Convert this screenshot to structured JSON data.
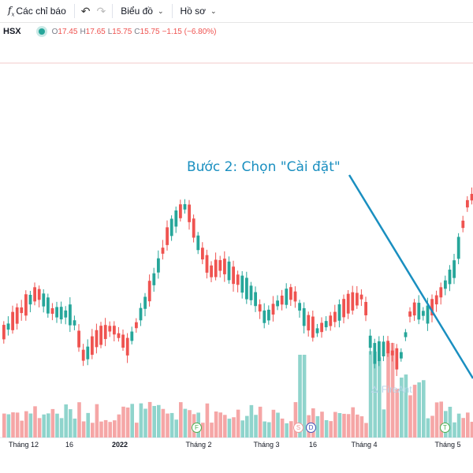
{
  "toolbar": {
    "indicators_label": "Các chỉ báo",
    "chart_label": "Biểu đồ",
    "profile_label": "Hồ sơ"
  },
  "legend": {
    "symbol": "HSX",
    "open_key": "O",
    "open": "17.45",
    "high_key": "H",
    "high": "17.65",
    "low_key": "L",
    "low": "15.75",
    "close_key": "C",
    "close": "15.75",
    "change": "−1.15 (−6.80%)"
  },
  "annotation": {
    "text": "Bước 2: Chọn \"Cài đặt\"",
    "color": "#1a8fc0"
  },
  "watermark": "FireAnt",
  "colors": {
    "up": "#26a69a",
    "down": "#ef5350",
    "up_vol": "#8fd4cc",
    "down_vol": "#f5a6a6"
  },
  "chart_data": {
    "type": "candlestick",
    "x_labels": [
      "Tháng 12",
      "16",
      "2022",
      "Tháng 2",
      "Tháng 3",
      "16",
      "Tháng 4",
      "Tháng 5"
    ],
    "event_badges": [
      {
        "letter": "F",
        "color": "#4caf50"
      },
      {
        "letter": "S",
        "color": "#ef9a9a"
      },
      {
        "letter": "D",
        "color": "#3f51b5"
      },
      {
        "letter": "T",
        "color": "#4caf50"
      }
    ]
  }
}
